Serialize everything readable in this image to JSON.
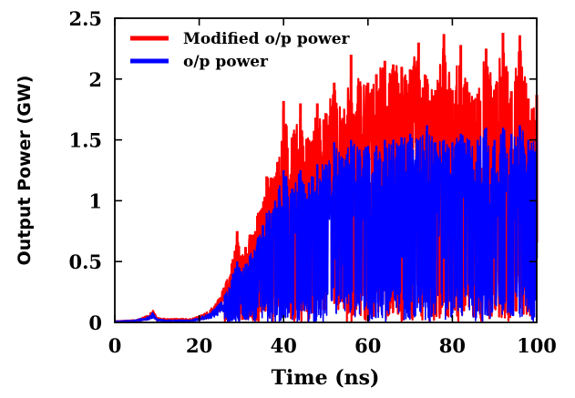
{
  "chart_data": {
    "type": "line",
    "title": "",
    "xlabel": "Time (ns)",
    "ylabel": "Output Power (GW)",
    "xlim": [
      0,
      100
    ],
    "ylim": [
      0,
      2.5
    ],
    "xticks": [
      0,
      20,
      40,
      60,
      80,
      100
    ],
    "yticks": [
      0,
      0.5,
      1,
      1.5,
      2,
      2.5
    ],
    "x_tick_labels": [
      "0",
      "20",
      "40",
      "60",
      "80",
      "100"
    ],
    "y_tick_labels": [
      "0",
      "0.5",
      "1",
      "1.5",
      "2",
      "2.5"
    ],
    "grid": false,
    "legend_position": "top-left",
    "series": [
      {
        "name": "Modified o/p power",
        "color": "#ff0000",
        "envelope_x": [
          0,
          5,
          8,
          9,
          10,
          12,
          15,
          18,
          20,
          22,
          24,
          26,
          28,
          29,
          30,
          31,
          32,
          34,
          36,
          38,
          40,
          42,
          44,
          46,
          48,
          50,
          52,
          54,
          56,
          58,
          60,
          62,
          64,
          66,
          68,
          70,
          72,
          74,
          76,
          78,
          80,
          82,
          84,
          86,
          88,
          90,
          92,
          94,
          96,
          98,
          100
        ],
        "envelope_y": [
          0.01,
          0.02,
          0.06,
          0.1,
          0.04,
          0.03,
          0.03,
          0.03,
          0.05,
          0.09,
          0.16,
          0.3,
          0.52,
          0.75,
          0.55,
          0.62,
          0.72,
          0.9,
          1.2,
          1.2,
          1.82,
          1.52,
          1.8,
          1.5,
          1.8,
          1.72,
          1.97,
          1.68,
          2.2,
          1.98,
          1.97,
          2.04,
          2.15,
          2.12,
          2.1,
          2.08,
          2.3,
          2.0,
          1.91,
          2.37,
          1.91,
          2.28,
          1.89,
          1.88,
          2.25,
          1.9,
          2.38,
          1.9,
          2.36,
          1.84,
          1.87
        ]
      },
      {
        "name": "o/p power",
        "color": "#0000ff",
        "envelope_x": [
          0,
          5,
          8,
          9,
          10,
          12,
          15,
          18,
          20,
          22,
          24,
          26,
          28,
          29,
          30,
          31,
          32,
          34,
          36,
          38,
          40,
          42,
          44,
          46,
          48,
          50,
          52,
          54,
          56,
          58,
          60,
          62,
          64,
          66,
          68,
          70,
          72,
          74,
          76,
          78,
          80,
          82,
          84,
          86,
          88,
          90,
          92,
          94,
          96,
          98,
          100
        ],
        "envelope_y": [
          0.01,
          0.02,
          0.05,
          0.08,
          0.03,
          0.02,
          0.02,
          0.02,
          0.04,
          0.07,
          0.12,
          0.22,
          0.4,
          0.5,
          0.42,
          0.48,
          0.55,
          0.7,
          0.9,
          1.0,
          1.25,
          1.1,
          1.25,
          1.15,
          1.3,
          1.3,
          1.48,
          1.35,
          1.5,
          1.42,
          1.45,
          1.45,
          1.5,
          1.5,
          1.52,
          1.55,
          1.5,
          1.62,
          1.48,
          1.5,
          1.48,
          1.55,
          1.5,
          1.5,
          1.6,
          1.5,
          1.6,
          1.55,
          1.62,
          1.5,
          1.5
        ]
      }
    ]
  }
}
